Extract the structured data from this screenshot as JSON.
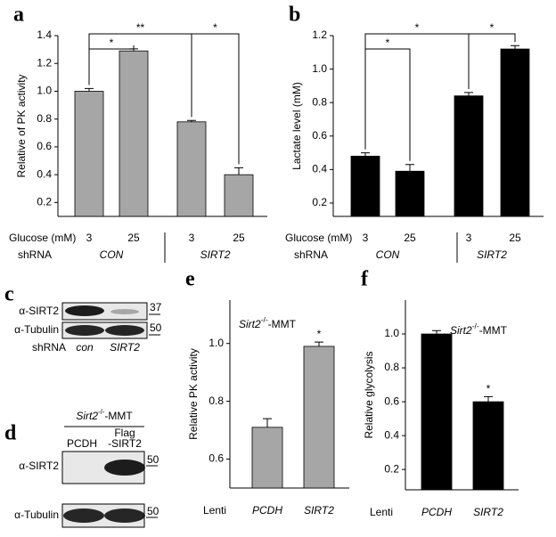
{
  "chart_data": [
    {
      "panel": "a",
      "type": "bar",
      "ylabel": "Relative of PK activity",
      "categories": [
        "3",
        "25",
        "3",
        "25"
      ],
      "values": [
        1.0,
        1.29,
        0.78,
        0.4
      ],
      "errors": [
        0.02,
        0.015,
        0.01,
        0.05
      ],
      "color": "#a6a6a6",
      "ylim": [
        0.1,
        1.4
      ],
      "yticks": [
        0.2,
        0.4,
        0.6,
        0.8,
        {
          "value": 1,
          "label": "1.0"
        },
        1.2,
        1.4
      ],
      "row_labels": [
        "Glucose (mM)",
        "shRNA"
      ],
      "groups": [
        "CON",
        "SIRT2"
      ],
      "annotations": [
        "*",
        "**",
        "*"
      ]
    },
    {
      "panel": "b",
      "type": "bar",
      "ylabel": "Lactate level (mM)",
      "categories": [
        "3",
        "25",
        "3",
        "25"
      ],
      "values": [
        0.48,
        0.39,
        0.84,
        1.12
      ],
      "errors": [
        0.02,
        0.04,
        0.02,
        0.02
      ],
      "color": "#000000",
      "ylim": [
        0.12,
        1.2
      ],
      "yticks": [
        0.2,
        0.4,
        0.6,
        0.8,
        {
          "value": 1,
          "label": "1.0"
        },
        1.2
      ],
      "row_labels": [
        "Glucose (mM)",
        "shRNA"
      ],
      "groups": [
        "CON",
        "SIRT2"
      ],
      "annotations": [
        "*",
        "*",
        "*"
      ]
    },
    {
      "panel": "e",
      "type": "bar",
      "ylabel": "Relative PK activity",
      "categories": [
        "PCDH",
        "SIRT2"
      ],
      "values": [
        0.71,
        0.99
      ],
      "errors": [
        0.03,
        0.015
      ],
      "color": "#a6a6a6",
      "ylim": [
        0.5,
        1.15
      ],
      "yticks": [
        0.6,
        0.8,
        {
          "value": 1,
          "label": "1.0"
        }
      ],
      "row_labels": [
        "Lenti"
      ],
      "inset": [
        "Sirt2",
        "-/-",
        "-MMT"
      ],
      "annotations": [
        "*"
      ]
    },
    {
      "panel": "f",
      "type": "bar",
      "ylabel": "Relative glycolysis",
      "categories": [
        "PCDH",
        "SIRT2"
      ],
      "values": [
        1.0,
        0.6
      ],
      "errors": [
        0.02,
        0.03
      ],
      "color": "#000000",
      "ylim": [
        0.08,
        1.2
      ],
      "yticks": [
        0.2,
        0.4,
        0.6,
        0.8,
        {
          "value": 1,
          "label": "1.0"
        }
      ],
      "row_labels": [
        "Lenti"
      ],
      "inset": [
        "Sirt2",
        "-/-",
        "-MMT"
      ],
      "annotations": [
        "*"
      ]
    }
  ],
  "blots": [
    {
      "panel": "c",
      "rows": [
        "α-SIRT2",
        "α-Tubulin"
      ],
      "markers": [
        "37",
        "50"
      ],
      "lane_label": "shRNA",
      "lanes": [
        "con",
        "SIRT2"
      ]
    },
    {
      "panel": "d",
      "header": [
        "Sirt2",
        "-/-",
        "-MMT"
      ],
      "lanes": [
        "PCDH",
        "Flag",
        "-SIRT2"
      ],
      "rows": [
        "α-SIRT2",
        "α-Tubulin"
      ],
      "markers": [
        "50",
        "50"
      ]
    }
  ]
}
